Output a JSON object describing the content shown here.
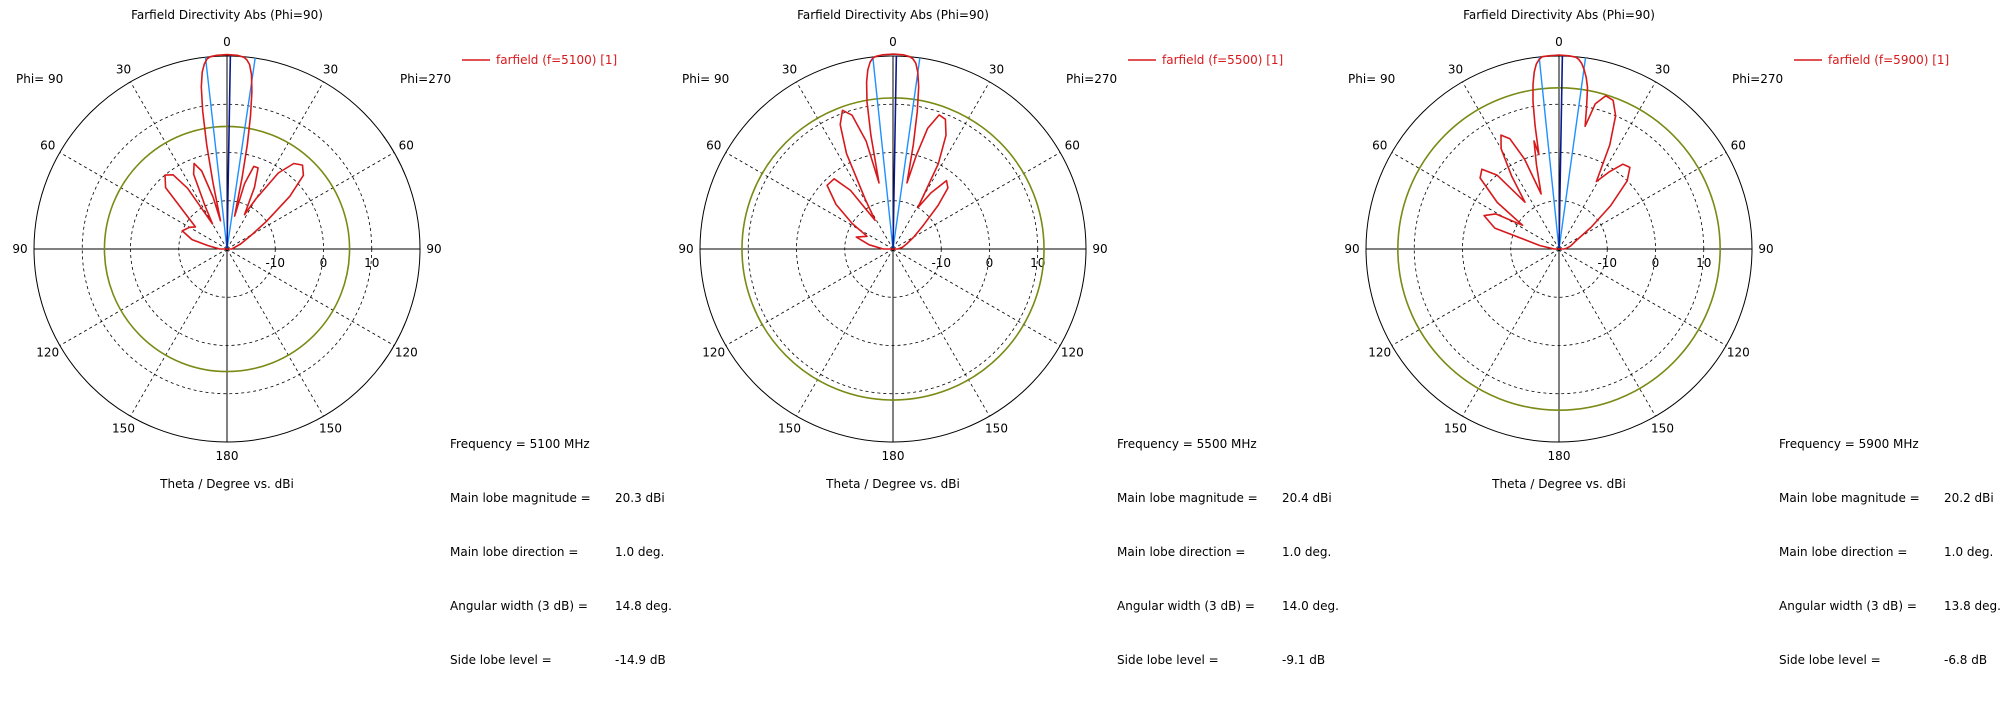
{
  "colors": {
    "pattern": "#d7191c",
    "main_lobe_line": "#0a1a8a",
    "beamwidth_line": "#1e90ff",
    "sidelobe_circle": "#7a8a14",
    "axis": "#000000",
    "grid": "#000000",
    "legend_text": "#d7191c"
  },
  "chart_data": [
    {
      "type": "polar",
      "title": "Farfield Directivity Abs (Phi=90)",
      "xlabel": "Theta / Degree vs. dBi",
      "phi_left_label": "Phi= 90",
      "phi_right_label": "Phi=270",
      "angle_labels": [
        "0",
        "30",
        "60",
        "90",
        "120",
        "150",
        "180",
        "150",
        "120",
        "90",
        "60",
        "30"
      ],
      "radial_tick_labels": [
        "-10",
        "0",
        "10"
      ],
      "radial_range": [
        -20,
        20
      ],
      "legend": "farfield (f=5100) [1]",
      "info": {
        "frequency": {
          "label": "Frequency = 5100 MHz",
          "value": ""
        },
        "main_lobe_magnitude": {
          "label": "Main lobe magnitude =",
          "value": "20.3 dBi"
        },
        "main_lobe_direction": {
          "label": "Main lobe direction =",
          "value": "1.0 deg."
        },
        "angular_width": {
          "label": "Angular width (3 dB) =",
          "value": "14.8 deg."
        },
        "side_lobe_level": {
          "label": "Side lobe level =",
          "value": "-14.9 dB"
        }
      },
      "main_lobe_dir_deg": 1.0,
      "main_lobe_mag_dbi": 20.3,
      "beamwidth_deg": 14.8,
      "sidelobe_ring_dbi": 5.4,
      "pattern_points": [
        [
          -90,
          -18.5
        ],
        [
          -80,
          -16
        ],
        [
          -75,
          -12.5
        ],
        [
          -68,
          -10
        ],
        [
          -60,
          -11
        ],
        [
          -55,
          -12
        ],
        [
          -50,
          -9
        ],
        [
          -45,
          -2
        ],
        [
          -40,
          0
        ],
        [
          -36,
          -1
        ],
        [
          -33,
          -5
        ],
        [
          -30,
          -14
        ],
        [
          -27,
          -10
        ],
        [
          -24,
          -3
        ],
        [
          -21,
          -1
        ],
        [
          -18,
          -3
        ],
        [
          -15,
          -9
        ],
        [
          -13,
          -14
        ],
        [
          -12,
          -6
        ],
        [
          -11,
          2
        ],
        [
          -10,
          9
        ],
        [
          -9,
          14
        ],
        [
          -8,
          17
        ],
        [
          -7,
          18.6
        ],
        [
          -6,
          19.6
        ],
        [
          -5,
          20
        ],
        [
          -3,
          20.2
        ],
        [
          0,
          20.3
        ],
        [
          3,
          20.2
        ],
        [
          5,
          19.9
        ],
        [
          6,
          19.4
        ],
        [
          7,
          18.5
        ],
        [
          8,
          16.5
        ],
        [
          9,
          13
        ],
        [
          10,
          8
        ],
        [
          11,
          2
        ],
        [
          12,
          -5
        ],
        [
          13,
          -13
        ],
        [
          15,
          -6
        ],
        [
          18,
          -2
        ],
        [
          21,
          -2
        ],
        [
          24,
          -6
        ],
        [
          27,
          -12
        ],
        [
          30,
          -8
        ],
        [
          34,
          -1
        ],
        [
          38,
          2.5
        ],
        [
          42,
          3.4
        ],
        [
          46,
          2
        ],
        [
          50,
          -3
        ],
        [
          55,
          -10
        ],
        [
          60,
          -14
        ],
        [
          70,
          -17
        ],
        [
          80,
          -18.5
        ],
        [
          90,
          -19
        ]
      ]
    },
    {
      "type": "polar",
      "title": "Farfield Directivity Abs (Phi=90)",
      "xlabel": "Theta / Degree vs. dBi",
      "phi_left_label": "Phi= 90",
      "phi_right_label": "Phi=270",
      "angle_labels": [
        "0",
        "30",
        "60",
        "90",
        "120",
        "150",
        "180",
        "150",
        "120",
        "90",
        "60",
        "30"
      ],
      "radial_tick_labels": [
        "-10",
        "0",
        "10"
      ],
      "radial_range": [
        -20,
        20
      ],
      "legend": "farfield (f=5500) [1]",
      "info": {
        "frequency": {
          "label": "Frequency = 5500 MHz",
          "value": ""
        },
        "main_lobe_magnitude": {
          "label": "Main lobe magnitude =",
          "value": "20.4 dBi"
        },
        "main_lobe_direction": {
          "label": "Main lobe direction =",
          "value": "1.0 deg."
        },
        "angular_width": {
          "label": "Angular width (3 dB) =",
          "value": "14.0 deg."
        },
        "side_lobe_level": {
          "label": "Side lobe level =",
          "value": "-9.1 dB"
        }
      },
      "main_lobe_dir_deg": 1.0,
      "main_lobe_mag_dbi": 20.4,
      "beamwidth_deg": 14.0,
      "sidelobe_ring_dbi": 11.3,
      "pattern_points": [
        [
          -90,
          -18
        ],
        [
          -80,
          -15
        ],
        [
          -72,
          -12
        ],
        [
          -64,
          -14
        ],
        [
          -58,
          -10
        ],
        [
          -52,
          -5
        ],
        [
          -46,
          -1
        ],
        [
          -40,
          -1
        ],
        [
          -36,
          -5
        ],
        [
          -32,
          -13
        ],
        [
          -29,
          -8
        ],
        [
          -26,
          2
        ],
        [
          -23,
          8
        ],
        [
          -20,
          10.6
        ],
        [
          -17,
          9
        ],
        [
          -14,
          3
        ],
        [
          -12,
          -6
        ],
        [
          -11,
          4
        ],
        [
          -10,
          11
        ],
        [
          -9,
          15
        ],
        [
          -8,
          17.5
        ],
        [
          -7,
          19
        ],
        [
          -6,
          19.8
        ],
        [
          -5,
          20.1
        ],
        [
          -3,
          20.3
        ],
        [
          0,
          20.4
        ],
        [
          3,
          20.3
        ],
        [
          5,
          20
        ],
        [
          6,
          19.6
        ],
        [
          7,
          18.8
        ],
        [
          8,
          17
        ],
        [
          9,
          14
        ],
        [
          10,
          9
        ],
        [
          11,
          2
        ],
        [
          12,
          -6
        ],
        [
          14,
          0
        ],
        [
          16,
          6
        ],
        [
          19,
          9.4
        ],
        [
          22,
          9
        ],
        [
          25,
          6
        ],
        [
          28,
          0
        ],
        [
          31,
          -10
        ],
        [
          34,
          -6
        ],
        [
          38,
          -2
        ],
        [
          42,
          -3
        ],
        [
          46,
          -7
        ],
        [
          52,
          -12
        ],
        [
          60,
          -15
        ],
        [
          70,
          -17
        ],
        [
          80,
          -18
        ],
        [
          90,
          -19
        ]
      ]
    },
    {
      "type": "polar",
      "title": "Farfield Directivity Abs (Phi=90)",
      "xlabel": "Theta / Degree vs. dBi",
      "phi_left_label": "Phi= 90",
      "phi_right_label": "Phi=270",
      "angle_labels": [
        "0",
        "30",
        "60",
        "90",
        "120",
        "150",
        "180",
        "150",
        "120",
        "90",
        "60",
        "30"
      ],
      "radial_tick_labels": [
        "-10",
        "0",
        "10"
      ],
      "radial_range": [
        -20,
        20
      ],
      "legend": "farfield (f=5900) [1]",
      "info": {
        "frequency": {
          "label": "Frequency = 5900 MHz",
          "value": ""
        },
        "main_lobe_magnitude": {
          "label": "Main lobe magnitude =",
          "value": "20.2 dBi"
        },
        "main_lobe_direction": {
          "label": "Main lobe direction =",
          "value": "1.0 deg."
        },
        "angular_width": {
          "label": "Angular width (3 dB) =",
          "value": "13.8 deg."
        },
        "side_lobe_level": {
          "label": "Side lobe level =",
          "value": "-6.8 dB"
        }
      },
      "main_lobe_dir_deg": 1.0,
      "main_lobe_mag_dbi": 20.2,
      "beamwidth_deg": 13.8,
      "sidelobe_ring_dbi": 13.4,
      "pattern_points": [
        [
          -90,
          -19
        ],
        [
          -80,
          -16
        ],
        [
          -72,
          -6
        ],
        [
          -66,
          -3
        ],
        [
          -61,
          -5
        ],
        [
          -57,
          -11
        ],
        [
          -53,
          -4
        ],
        [
          -48,
          2
        ],
        [
          -44,
          3
        ],
        [
          -40,
          0
        ],
        [
          -36,
          -8
        ],
        [
          -33,
          -2
        ],
        [
          -30,
          4
        ],
        [
          -27,
          6.5
        ],
        [
          -24,
          5
        ],
        [
          -21,
          0
        ],
        [
          -18,
          -8
        ],
        [
          -15,
          -2
        ],
        [
          -13,
          3
        ],
        [
          -12,
          0
        ],
        [
          -11,
          6
        ],
        [
          -10,
          11
        ],
        [
          -9,
          14.5
        ],
        [
          -8,
          17
        ],
        [
          -7,
          18.6
        ],
        [
          -6,
          19.5
        ],
        [
          -5,
          20
        ],
        [
          -3,
          20.1
        ],
        [
          0,
          20.2
        ],
        [
          3,
          20.1
        ],
        [
          5,
          19.9
        ],
        [
          6,
          19.5
        ],
        [
          7,
          18.7
        ],
        [
          8,
          17.5
        ],
        [
          9,
          16
        ],
        [
          10,
          14
        ],
        [
          11,
          10
        ],
        [
          12,
          6
        ],
        [
          14,
          11
        ],
        [
          17,
          13.2
        ],
        [
          20,
          12.8
        ],
        [
          23,
          10
        ],
        [
          26,
          4
        ],
        [
          29,
          -4
        ],
        [
          33,
          -1
        ],
        [
          37,
          2
        ],
        [
          41,
          2.4
        ],
        [
          45,
          0
        ],
        [
          50,
          -6
        ],
        [
          56,
          -12
        ],
        [
          64,
          -16
        ],
        [
          75,
          -17.5
        ],
        [
          85,
          -18.5
        ],
        [
          90,
          -19
        ]
      ]
    }
  ]
}
